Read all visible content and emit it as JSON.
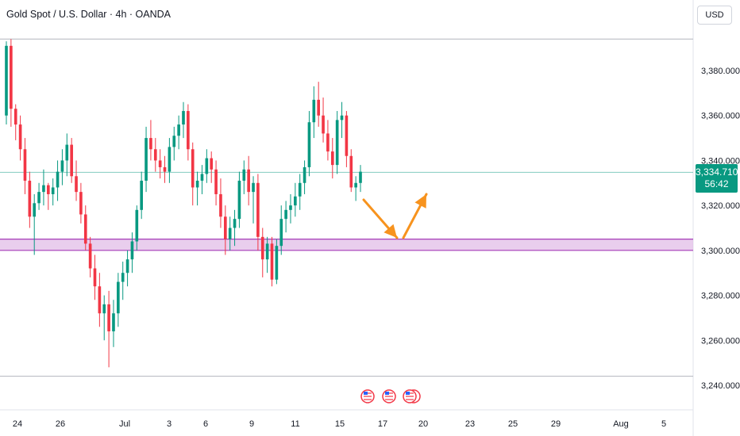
{
  "header": {
    "title": "Gold Spot / U.S. Dollar · 4h · OANDA",
    "currency": "USD"
  },
  "price_tag": {
    "price": "3,334.710",
    "countdown": "56:42"
  },
  "colors": {
    "up": "#089981",
    "down": "#f23645",
    "zone_fill": "#e1bee7",
    "zone_border": "#9c27b0",
    "arrow": "#f7931e",
    "price_line": "#089981"
  },
  "chart_data": {
    "type": "candlestick",
    "symbol": "Gold Spot / U.S. Dollar",
    "timeframe": "4h",
    "ylim": [
      3230,
      3405
    ],
    "y_ticks": [
      "3,240.000",
      "3,260.000",
      "3,280.000",
      "3,300.000",
      "3,320.000",
      "3,340.000",
      "3,360.000",
      "3,380.000"
    ],
    "y_tick_values": [
      3240,
      3260,
      3280,
      3300,
      3320,
      3340,
      3360,
      3380
    ],
    "x_tick_labels": [
      "24",
      "26",
      "Jul",
      "3",
      "6",
      "9",
      "11",
      "15",
      "17",
      "20",
      "23",
      "25",
      "29",
      "Aug",
      "5"
    ],
    "current_price": 3334.71,
    "horizontal_lines": [
      3394,
      3244
    ],
    "support_zone": [
      3300,
      3305
    ],
    "projection_path": [
      {
        "date": "Jul 16",
        "price": 3322
      },
      {
        "date": "Jul 18",
        "price": 3305
      },
      {
        "date": "Jul 20",
        "price": 3326
      }
    ],
    "event_markers": [
      "Jul 16",
      "Jul 17",
      "Jul 18"
    ],
    "candles": [
      [
        3360,
        3393,
        3356,
        3391
      ],
      [
        3391,
        3394,
        3355,
        3363
      ],
      [
        3363,
        3365,
        3349,
        3356
      ],
      [
        3356,
        3360,
        3340,
        3345
      ],
      [
        3345,
        3350,
        3325,
        3331
      ],
      [
        3331,
        3335,
        3310,
        3315
      ],
      [
        3315,
        3325,
        3298,
        3321
      ],
      [
        3321,
        3330,
        3318,
        3326
      ],
      [
        3326,
        3336,
        3320,
        3329
      ],
      [
        3329,
        3330,
        3318,
        3325
      ],
      [
        3325,
        3332,
        3320,
        3328
      ],
      [
        3328,
        3340,
        3322,
        3335
      ],
      [
        3335,
        3345,
        3329,
        3340
      ],
      [
        3340,
        3352,
        3333,
        3347
      ],
      [
        3347,
        3350,
        3330,
        3333
      ],
      [
        3333,
        3340,
        3322,
        3326
      ],
      [
        3326,
        3330,
        3312,
        3316
      ],
      [
        3316,
        3320,
        3300,
        3303
      ],
      [
        3303,
        3306,
        3288,
        3292
      ],
      [
        3292,
        3298,
        3278,
        3284
      ],
      [
        3284,
        3290,
        3266,
        3272
      ],
      [
        3272,
        3280,
        3260,
        3276
      ],
      [
        3276,
        3282,
        3248,
        3264
      ],
      [
        3264,
        3278,
        3257,
        3272
      ],
      [
        3272,
        3290,
        3266,
        3286
      ],
      [
        3286,
        3295,
        3278,
        3290
      ],
      [
        3290,
        3300,
        3284,
        3296
      ],
      [
        3296,
        3308,
        3290,
        3304
      ],
      [
        3304,
        3320,
        3300,
        3318
      ],
      [
        3318,
        3335,
        3314,
        3331
      ],
      [
        3331,
        3355,
        3326,
        3350
      ],
      [
        3350,
        3358,
        3340,
        3345
      ],
      [
        3345,
        3350,
        3335,
        3340
      ],
      [
        3340,
        3345,
        3332,
        3337
      ],
      [
        3337,
        3342,
        3330,
        3335
      ],
      [
        3335,
        3350,
        3330,
        3346
      ],
      [
        3346,
        3355,
        3340,
        3351
      ],
      [
        3351,
        3360,
        3345,
        3356
      ],
      [
        3356,
        3366,
        3350,
        3362
      ],
      [
        3362,
        3365,
        3340,
        3345
      ],
      [
        3345,
        3348,
        3320,
        3328
      ],
      [
        3328,
        3335,
        3320,
        3331
      ],
      [
        3331,
        3338,
        3325,
        3334
      ],
      [
        3334,
        3345,
        3330,
        3341
      ],
      [
        3341,
        3344,
        3330,
        3336
      ],
      [
        3336,
        3340,
        3320,
        3325
      ],
      [
        3325,
        3332,
        3310,
        3315
      ],
      [
        3315,
        3320,
        3298,
        3305
      ],
      [
        3305,
        3315,
        3300,
        3310
      ],
      [
        3310,
        3318,
        3302,
        3314
      ],
      [
        3314,
        3335,
        3310,
        3331
      ],
      [
        3331,
        3340,
        3325,
        3336
      ],
      [
        3336,
        3342,
        3320,
        3326
      ],
      [
        3326,
        3333,
        3312,
        3330
      ],
      [
        3330,
        3334,
        3300,
        3306
      ],
      [
        3306,
        3310,
        3288,
        3296
      ],
      [
        3296,
        3306,
        3290,
        3303
      ],
      [
        3303,
        3306,
        3284,
        3287
      ],
      [
        3287,
        3305,
        3285,
        3302
      ],
      [
        3302,
        3320,
        3298,
        3314
      ],
      [
        3314,
        3322,
        3308,
        3318
      ],
      [
        3318,
        3325,
        3312,
        3320
      ],
      [
        3320,
        3330,
        3315,
        3324
      ],
      [
        3324,
        3334,
        3318,
        3330
      ],
      [
        3330,
        3340,
        3325,
        3337
      ],
      [
        3337,
        3362,
        3333,
        3357
      ],
      [
        3357,
        3373,
        3350,
        3367
      ],
      [
        3367,
        3375,
        3355,
        3360
      ],
      [
        3360,
        3368,
        3348,
        3352
      ],
      [
        3352,
        3358,
        3340,
        3344
      ],
      [
        3344,
        3350,
        3332,
        3338
      ],
      [
        3338,
        3362,
        3334,
        3358
      ],
      [
        3358,
        3366,
        3350,
        3360
      ],
      [
        3360,
        3362,
        3337,
        3342
      ],
      [
        3342,
        3345,
        3326,
        3328
      ],
      [
        3328,
        3333,
        3322,
        3330
      ],
      [
        3330,
        3338,
        3326,
        3335
      ]
    ]
  }
}
